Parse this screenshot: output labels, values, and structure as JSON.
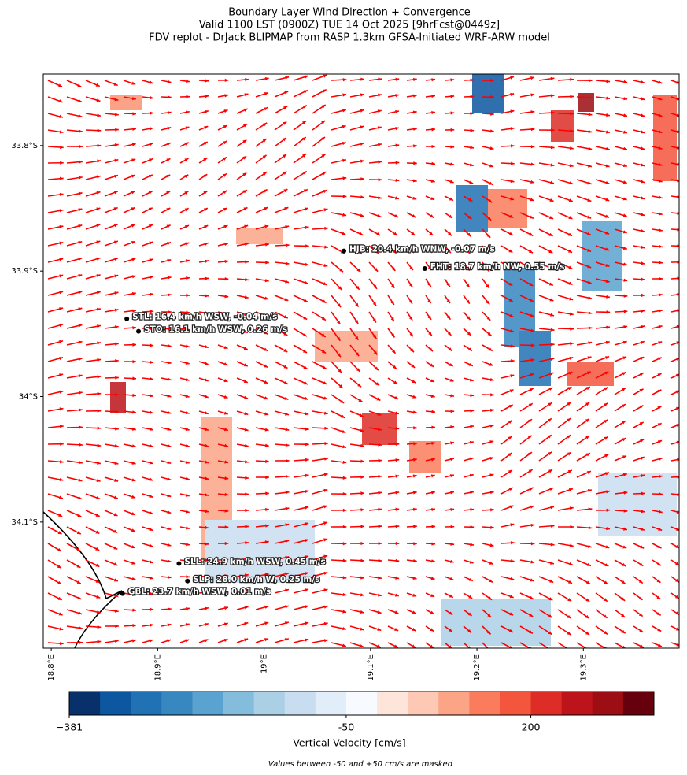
{
  "title": [
    "Boundary Layer Wind Direction + Convergence",
    "Valid 1100 LST (0900Z) TUE 14 Oct 2025 [9hrFcst@0449z]",
    "FDV replot - DrJack BLIPMAP from RASP 1.3km GFSA-Initiated WRF-ARW model"
  ],
  "map": {
    "xlim": [
      18.7925,
      19.39
    ],
    "ylim": [
      -34.2005,
      -33.743
    ],
    "xticks": [
      {
        "value": 18.8,
        "label": "18.8°E"
      },
      {
        "value": 18.9,
        "label": "18.9°E"
      },
      {
        "value": 19.0,
        "label": "19°E"
      },
      {
        "value": 19.1,
        "label": "19.1°E"
      },
      {
        "value": 19.2,
        "label": "19.2°E"
      },
      {
        "value": 19.3,
        "label": "19.3°E"
      }
    ],
    "yticks": [
      {
        "value": -33.8,
        "label": "33.8°S"
      },
      {
        "value": -33.9,
        "label": "33.9°S"
      },
      {
        "value": -34.0,
        "label": "34°S"
      },
      {
        "value": -34.1,
        "label": "34.1°S"
      }
    ],
    "stations": [
      {
        "label": "HJB: 20.4 km/h WNW, -0.07 m/s",
        "lon": 19.075,
        "lat": -33.884
      },
      {
        "label": "FHT: 18.7 km/h NW, 0.55 m/s",
        "lon": 19.151,
        "lat": -33.898
      },
      {
        "label": "STL: 16.4 km/h WSW, -0.04 m/s",
        "lon": 18.871,
        "lat": -33.938
      },
      {
        "label": "STO: 16.1 km/h WSW, 0.26 m/s",
        "lon": 18.882,
        "lat": -33.948
      },
      {
        "label": "SLL: 24.9 km/h WSW, 0.45 m/s",
        "lon": 18.92,
        "lat": -34.133
      },
      {
        "label": "SLP: 28.0 km/h W, 0.25 m/s",
        "lon": 18.928,
        "lat": -34.147
      },
      {
        "label": "GBL: 23.7 km/h WSW, 0.01 m/s",
        "lon": 18.867,
        "lat": -34.157
      }
    ]
  },
  "colorbar": {
    "label": "Vertical Velocity [cm/s]",
    "levels": [
      -381,
      -344,
      -307,
      -271,
      -234,
      -197,
      -160,
      -123,
      -87,
      -50,
      -8,
      33,
      75,
      117,
      158,
      200,
      242,
      283,
      325,
      367
    ],
    "colors": [
      "#08306b",
      "#0d56a0",
      "#2171b5",
      "#3787c0",
      "#5aa2cf",
      "#84bcdc",
      "#abd0e6",
      "#c9ddf0",
      "#e1edf8",
      "#f7fbff",
      "#fee5d9",
      "#fdc9b4",
      "#fca486",
      "#fb7c5c",
      "#f4553d",
      "#de2d26",
      "#bc141a",
      "#9c0d14",
      "#67000d"
    ],
    "ticks": [
      {
        "value": -381,
        "label": "−381"
      },
      -50,
      200
    ]
  },
  "footnote": "Values between -50 and +50 cm/s are masked"
}
